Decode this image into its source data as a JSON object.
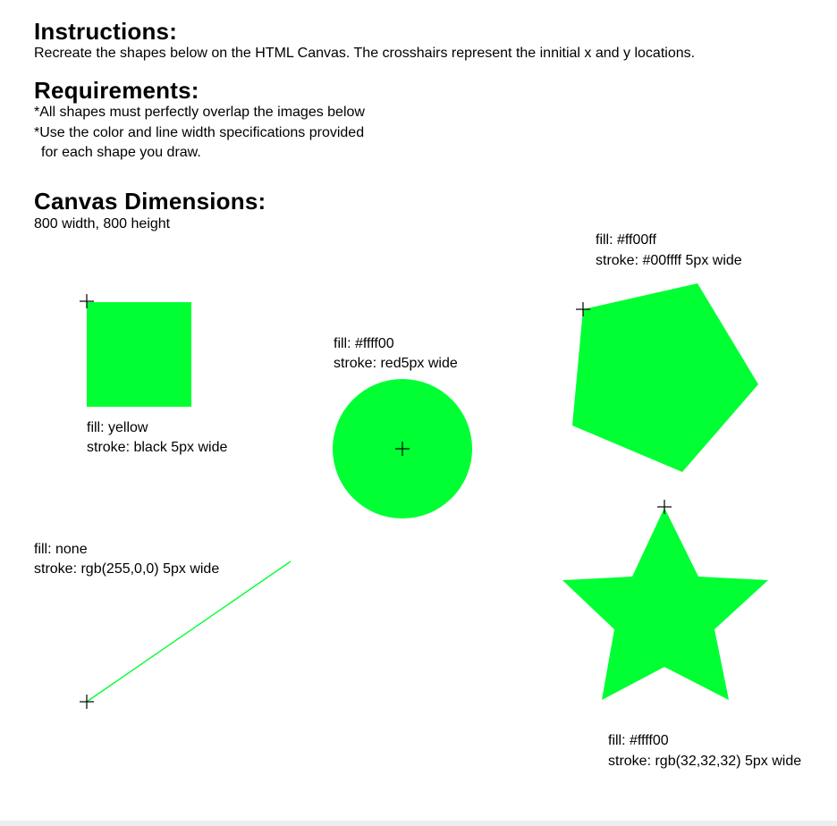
{
  "instructions": {
    "heading": "Instructions:",
    "text": "Recreate the shapes below on the HTML Canvas. The crosshairs represent the innitial x and y locations."
  },
  "requirements": {
    "heading": "Requirements:",
    "line1": "*All shapes must perfectly overlap the images below",
    "line2": "*Use the color and line width specifications provided",
    "line3": "for each shape you draw."
  },
  "canvas_dimensions": {
    "heading": "Canvas Dimensions:",
    "text": "800 width, 800 height"
  },
  "shape_color": "#00ff33",
  "crosshair_color": "#000000",
  "labels": {
    "square": {
      "fill": "fill: yellow",
      "stroke": "stroke: black 5px wide"
    },
    "circle": {
      "fill": "fill: #ffff00",
      "stroke": "stroke: red5px wide"
    },
    "pentagon": {
      "fill": "fill: #ff00ff",
      "stroke": "stroke: #00ffff 5px wide"
    },
    "line": {
      "fill": "fill: none",
      "stroke": "stroke: rgb(255,0,0) 5px wide"
    },
    "star": {
      "fill": "fill: #ffff00",
      "stroke": "stroke: rgb(32,32,32) 5px wide"
    }
  }
}
